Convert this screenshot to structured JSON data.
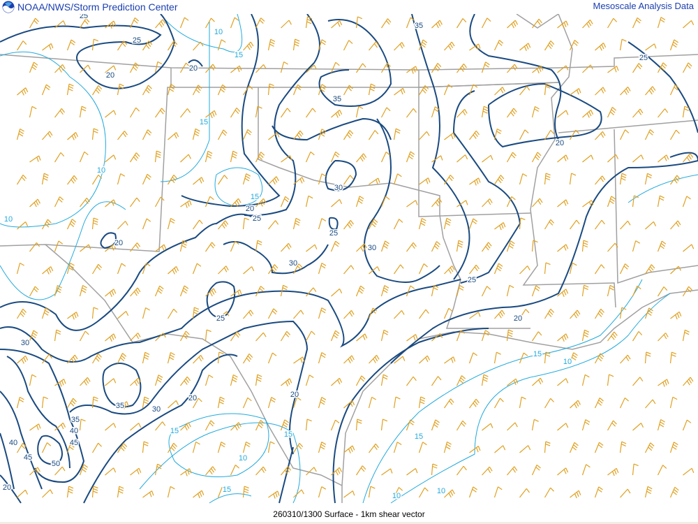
{
  "header": {
    "title": "NOAA/NWS/Storm Prediction Center",
    "right_title": "Mesoscale Analysis Data",
    "logo_icon": "noaa-logo-icon"
  },
  "footer": {
    "caption": "260310/1300 Surface - 1km shear vector"
  },
  "map": {
    "field": "1km shear magnitude (kt)",
    "colors": {
      "strong_contour": "#1a4a80",
      "weak_contour": "#22aadd",
      "wind_barb": "#e0a020",
      "borders": "#a0a0a0"
    },
    "contour_labels": [
      "25",
      "25",
      "20",
      "20",
      "10",
      "15",
      "35",
      "35",
      "25",
      "15",
      "10",
      "10",
      "20",
      "15",
      "20",
      "25",
      "30",
      "25",
      "30",
      "30",
      "20",
      "25",
      "20",
      "25",
      "30",
      "15",
      "10",
      "35",
      "30",
      "20",
      "20",
      "35",
      "40",
      "45",
      "40",
      "45",
      "50",
      "15",
      "15",
      "15",
      "10",
      "15",
      "10",
      "10",
      "20"
    ]
  }
}
